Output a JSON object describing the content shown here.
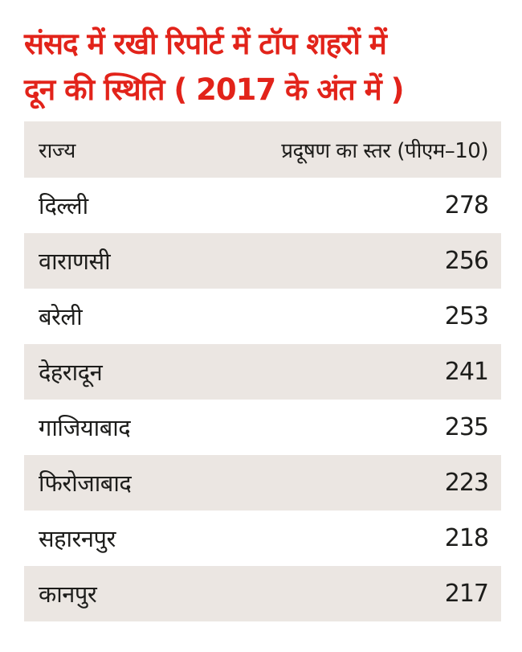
{
  "title": {
    "line1": "संसद में रखी रिपोर्ट में टॉप शहरों में",
    "line2": "दून की स्थिति ( 2017 के अंत में )"
  },
  "table": {
    "headers": {
      "state": "राज्य",
      "level": "प्रदूषण का स्तर (पीएम–10)"
    },
    "rows": [
      {
        "city": "दिल्ली",
        "value": "278"
      },
      {
        "city": "वाराणसी",
        "value": "256"
      },
      {
        "city": "बरेली",
        "value": "253"
      },
      {
        "city": "देहरादून",
        "value": "241"
      },
      {
        "city": "गाजियाबाद",
        "value": "235"
      },
      {
        "city": "फिरोजाबाद",
        "value": "223"
      },
      {
        "city": "सहारनपुर",
        "value": "218"
      },
      {
        "city": "कानपुर",
        "value": "217"
      }
    ]
  },
  "colors": {
    "title": "#e2231a",
    "shade": "#ebe6e2",
    "text": "#1d1d1b"
  }
}
